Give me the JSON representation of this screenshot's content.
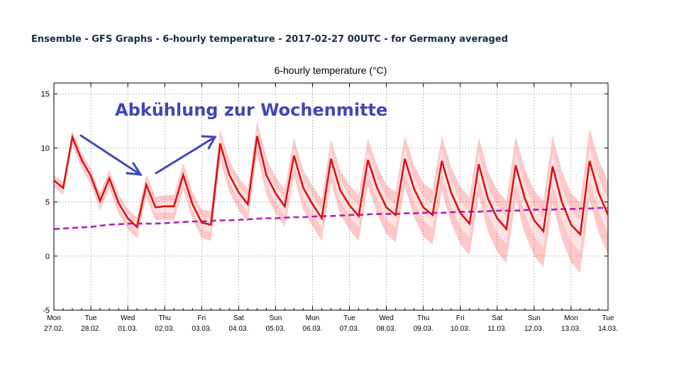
{
  "header": {
    "title": "Ensemble - GFS Graphs - 6-hourly temperature - 2017-02-27 00UTC - for Germany averaged"
  },
  "chart_data": {
    "type": "line",
    "title": "6-hourly temperature (°C)",
    "annotation": "Abkühlung zur Wochenmitte",
    "ylim": [
      -5,
      16
    ],
    "yticks": [
      -5,
      0,
      5,
      10,
      15
    ],
    "grid": true,
    "x_day_labels": [
      {
        "day": "Mon",
        "date": "27.02."
      },
      {
        "day": "Tue",
        "date": "28.02."
      },
      {
        "day": "Wed",
        "date": "01.03."
      },
      {
        "day": "Thu",
        "date": "02.03."
      },
      {
        "day": "Fri",
        "date": "03.03."
      },
      {
        "day": "Sat",
        "date": "04.03."
      },
      {
        "day": "Sun",
        "date": "05.03."
      },
      {
        "day": "Mon",
        "date": "06.03."
      },
      {
        "day": "Tue",
        "date": "07.03."
      },
      {
        "day": "Wed",
        "date": "08.03."
      },
      {
        "day": "Thu",
        "date": "09.03."
      },
      {
        "day": "Fri",
        "date": "10.03."
      },
      {
        "day": "Sat",
        "date": "11.03."
      },
      {
        "day": "Sun",
        "date": "12.03."
      },
      {
        "day": "Mon",
        "date": "13.03."
      },
      {
        "day": "Tue",
        "date": "14.03."
      }
    ],
    "steps_per_day": 4,
    "series": [
      {
        "values": [
          7.0,
          6.3,
          11.0,
          8.9,
          7.4,
          5.1,
          7.2,
          4.9,
          3.5,
          2.7,
          6.6,
          4.5,
          4.6,
          4.6,
          7.5,
          4.8,
          3.1,
          2.9,
          10.4,
          7.5,
          5.9,
          4.8,
          11.1,
          7.5,
          5.8,
          4.6,
          9.3,
          6.3,
          4.8,
          3.5,
          9.0,
          6.1,
          4.7,
          3.7,
          8.9,
          6.3,
          4.5,
          3.8,
          9.0,
          6.2,
          4.5,
          3.8,
          8.8,
          5.9,
          4.0,
          3.0,
          8.5,
          5.3,
          3.5,
          2.5,
          8.4,
          5.3,
          3.3,
          2.3,
          8.3,
          5.0,
          2.9,
          2.0,
          8.8,
          5.8,
          3.8
        ]
      },
      {
        "values": [
          2.5,
          2.55,
          2.6,
          2.65,
          2.7,
          2.8,
          2.9,
          2.95,
          3.0,
          3.0,
          3.0,
          3.0,
          3.05,
          3.1,
          3.15,
          3.2,
          3.2,
          3.25,
          3.3,
          3.3,
          3.35,
          3.4,
          3.45,
          3.5,
          3.5,
          3.55,
          3.6,
          3.6,
          3.65,
          3.7,
          3.7,
          3.75,
          3.8,
          3.8,
          3.85,
          3.9,
          3.9,
          3.9,
          3.95,
          3.95,
          4.0,
          4.0,
          4.0,
          4.05,
          4.1,
          4.1,
          4.1,
          4.15,
          4.2,
          4.2,
          4.2,
          4.25,
          4.3,
          4.3,
          4.3,
          4.35,
          4.35,
          4.4,
          4.4,
          4.45,
          4.45
        ]
      }
    ],
    "colors": {
      "ensemble_mean": "#dd1111",
      "climate": "#b020b0",
      "inner_band": "#ffc8c8",
      "outer_band": "#ffe3e3",
      "annotation": "#4047b8"
    }
  }
}
